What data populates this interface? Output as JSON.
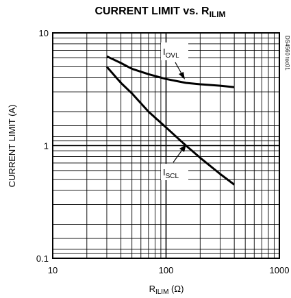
{
  "chart_data": {
    "type": "line",
    "title": {
      "main": "CURRENT LIMIT vs. R",
      "sub": "ILIM"
    },
    "xlabel": {
      "main": "R",
      "sub": "ILIM",
      "unit": " (Ω)"
    },
    "ylabel": "CURRENT LIMIT (A)",
    "x_scale": "log",
    "y_scale": "log",
    "xlim": [
      10,
      1000
    ],
    "ylim": [
      0.1,
      10
    ],
    "x_ticks": [
      "10",
      "100",
      "1000"
    ],
    "y_ticks": [
      "0.1",
      "1",
      "10"
    ],
    "grid": true,
    "series": [
      {
        "name": {
          "main": "I",
          "sub": "OVL"
        },
        "x": [
          30,
          40,
          50,
          70,
          100,
          150,
          200,
          300,
          400
        ],
        "y": [
          6.2,
          5.4,
          4.8,
          4.3,
          3.9,
          3.6,
          3.5,
          3.4,
          3.3
        ]
      },
      {
        "name": {
          "main": "I",
          "sub": "SCL"
        },
        "x": [
          30,
          40,
          50,
          70,
          100,
          150,
          200,
          300,
          400
        ],
        "y": [
          5.0,
          3.6,
          2.9,
          2.0,
          1.45,
          1.0,
          0.78,
          0.56,
          0.45
        ]
      }
    ],
    "code_label": "DS4560 toc01"
  }
}
